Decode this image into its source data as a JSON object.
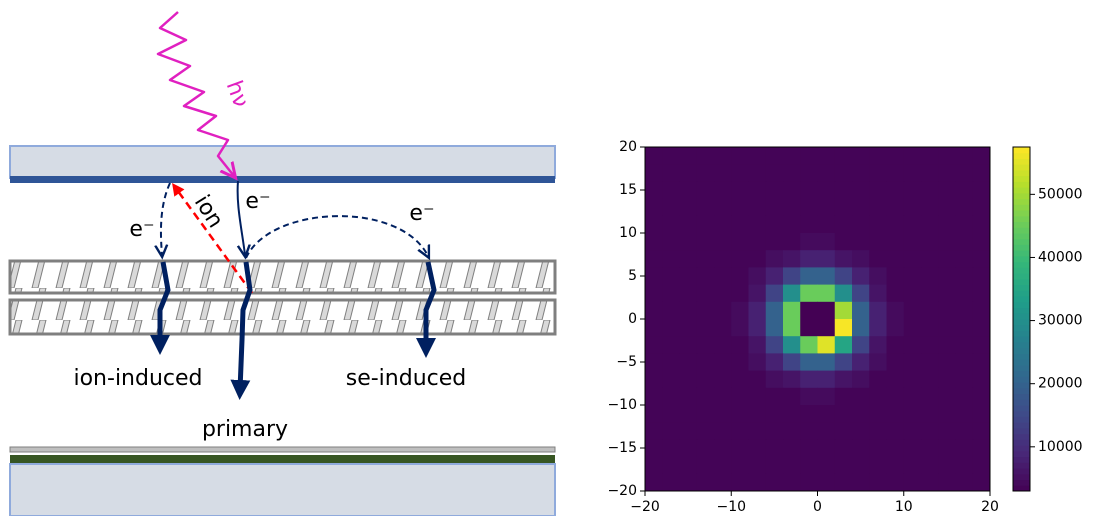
{
  "diagram": {
    "labels": {
      "photon": "hν",
      "ion": "ion",
      "electron_primary": "e⁻",
      "electron_ion": "e⁻",
      "electron_se": "e⁻",
      "ion_induced": "ion-induced",
      "se_induced": "se-induced",
      "primary": "primary"
    }
  },
  "chart_data": {
    "type": "heatmap",
    "colormap": "viridis",
    "x": [
      -19,
      -17,
      -15,
      -13,
      -11,
      -9,
      -7,
      -5,
      -3,
      -1,
      1,
      3,
      5,
      7,
      9,
      11,
      13,
      15,
      17,
      19
    ],
    "y": [
      19,
      17,
      15,
      13,
      11,
      9,
      7,
      5,
      3,
      1,
      -1,
      -3,
      -5,
      -7,
      -9,
      -11,
      -13,
      -15,
      -17,
      -19
    ],
    "values": [
      [
        3500,
        3500,
        3500,
        3500,
        3500,
        3500,
        3500,
        3500,
        3500,
        3500,
        3500,
        3500,
        3500,
        3500,
        3500,
        3500,
        3500,
        3500,
        3500,
        3500
      ],
      [
        3500,
        3500,
        3500,
        3500,
        3500,
        3500,
        3500,
        3500,
        3500,
        3500,
        3500,
        3500,
        3500,
        3500,
        3500,
        3500,
        3500,
        3500,
        3500,
        3500
      ],
      [
        3500,
        3500,
        3500,
        3500,
        3500,
        3500,
        3500,
        3500,
        3500,
        3500,
        3500,
        3500,
        3500,
        3500,
        3500,
        3500,
        3500,
        3500,
        3500,
        3500
      ],
      [
        3500,
        3500,
        3500,
        3500,
        3500,
        3500,
        3500,
        3500,
        3500,
        3500,
        3500,
        3500,
        3500,
        3500,
        3500,
        3500,
        3500,
        3500,
        3500,
        3500
      ],
      [
        3500,
        3500,
        3500,
        3500,
        3500,
        3500,
        3500,
        3500,
        3500,
        3500,
        3500,
        3500,
        3500,
        3500,
        3500,
        3500,
        3500,
        3500,
        3500,
        3500
      ],
      [
        3500,
        3500,
        3500,
        3500,
        3500,
        3500,
        3500,
        3500,
        3500,
        4500,
        4500,
        3500,
        3500,
        3500,
        3500,
        3500,
        3500,
        3500,
        3500,
        3500
      ],
      [
        3500,
        3500,
        3500,
        3500,
        3500,
        3500,
        3500,
        5000,
        6000,
        8000,
        8000,
        6000,
        5000,
        3500,
        3500,
        3500,
        3500,
        3500,
        3500,
        3500
      ],
      [
        3500,
        3500,
        3500,
        3500,
        3500,
        3500,
        5000,
        8000,
        14000,
        20000,
        20000,
        14000,
        8000,
        5000,
        3500,
        3500,
        3500,
        3500,
        3500,
        3500
      ],
      [
        3500,
        3500,
        3500,
        3500,
        3500,
        3500,
        6000,
        14000,
        30000,
        45000,
        45000,
        30000,
        14000,
        6000,
        3500,
        3500,
        3500,
        3500,
        3500,
        3500
      ],
      [
        3500,
        3500,
        3500,
        3500,
        3500,
        4500,
        8000,
        20000,
        45000,
        3000,
        3000,
        50000,
        20000,
        8000,
        4500,
        3500,
        3500,
        3500,
        3500,
        3500
      ],
      [
        3500,
        3500,
        3500,
        3500,
        3500,
        4500,
        8000,
        20000,
        45000,
        3000,
        3000,
        57000,
        20000,
        8000,
        4500,
        3500,
        3500,
        3500,
        3500,
        3500
      ],
      [
        3500,
        3500,
        3500,
        3500,
        3500,
        3500,
        6000,
        14000,
        30000,
        45000,
        55000,
        35000,
        14000,
        6000,
        3500,
        3500,
        3500,
        3500,
        3500,
        3500
      ],
      [
        3500,
        3500,
        3500,
        3500,
        3500,
        3500,
        5000,
        8000,
        14000,
        20000,
        20000,
        14000,
        8000,
        5000,
        3500,
        3500,
        3500,
        3500,
        3500,
        3500
      ],
      [
        3500,
        3500,
        3500,
        3500,
        3500,
        3500,
        3500,
        5000,
        6000,
        8000,
        8000,
        6000,
        5000,
        3500,
        3500,
        3500,
        3500,
        3500,
        3500,
        3500
      ],
      [
        3500,
        3500,
        3500,
        3500,
        3500,
        3500,
        3500,
        3500,
        3500,
        4500,
        4500,
        3500,
        3500,
        3500,
        3500,
        3500,
        3500,
        3500,
        3500,
        3500
      ],
      [
        3500,
        3500,
        3500,
        3500,
        3500,
        3500,
        3500,
        3500,
        3500,
        3500,
        3500,
        3500,
        3500,
        3500,
        3500,
        3500,
        3500,
        3500,
        3500,
        3500
      ],
      [
        3500,
        3500,
        3500,
        3500,
        3500,
        3500,
        3500,
        3500,
        3500,
        3500,
        3500,
        3500,
        3500,
        3500,
        3500,
        3500,
        3500,
        3500,
        3500,
        3500
      ],
      [
        3500,
        3500,
        3500,
        3500,
        3500,
        3500,
        3500,
        3500,
        3500,
        3500,
        3500,
        3500,
        3500,
        3500,
        3500,
        3500,
        3500,
        3500,
        3500,
        3500
      ],
      [
        3500,
        3500,
        3500,
        3500,
        3500,
        3500,
        3500,
        3500,
        3500,
        3500,
        3500,
        3500,
        3500,
        3500,
        3500,
        3500,
        3500,
        3500,
        3500,
        3500
      ],
      [
        3500,
        3500,
        3500,
        3500,
        3500,
        3500,
        3500,
        3500,
        3500,
        3500,
        3500,
        3500,
        3500,
        3500,
        3500,
        3500,
        3500,
        3500,
        3500,
        3500
      ]
    ],
    "xlim": [
      -20,
      20
    ],
    "ylim": [
      -20,
      20
    ],
    "xticks": [
      {
        "value": -20,
        "label": "−20"
      },
      {
        "value": -10,
        "label": "−10"
      },
      0,
      10,
      20
    ],
    "yticks": [
      {
        "value": -20,
        "label": "−20"
      },
      {
        "value": -15,
        "label": "−15"
      },
      {
        "value": -10,
        "label": "−10"
      },
      {
        "value": -5,
        "label": "−5"
      },
      0,
      5,
      10,
      15,
      20
    ],
    "clim": [
      3000,
      57500
    ],
    "cticks": [
      10000,
      20000,
      30000,
      40000,
      50000
    ]
  }
}
